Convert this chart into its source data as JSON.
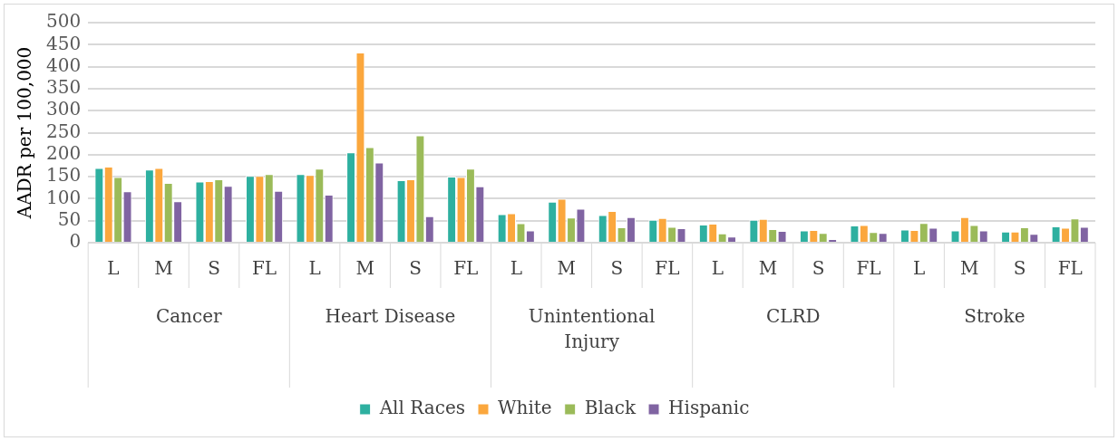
{
  "chart_data": {
    "type": "bar",
    "ylabel": "AADR per 100,000",
    "categories": [
      "L",
      "M",
      "S",
      "FL",
      "L",
      "M",
      "S",
      "FL",
      "L",
      "M",
      "S",
      "FL",
      "L",
      "M",
      "S",
      "FL",
      "L",
      "M",
      "S",
      "FL"
    ],
    "annotations": [
      "Cancer",
      "Heart Disease",
      "Unintentional Injury",
      "CLRD",
      "Stroke"
    ],
    "series": [
      {
        "name": "All Races",
        "color": "#2eb0a0",
        "values": [
          170,
          166,
          139,
          152,
          156,
          205,
          142,
          150,
          65,
          93,
          63,
          52,
          41,
          52,
          28,
          39,
          30,
          28,
          25,
          37
        ]
      },
      {
        "name": "White",
        "color": "#fba73d",
        "values": [
          173,
          170,
          140,
          152,
          154,
          432,
          144,
          149,
          67,
          100,
          72,
          56,
          43,
          54,
          29,
          40,
          29,
          58,
          25,
          34
        ]
      },
      {
        "name": "Black",
        "color": "#9bbb59",
        "values": [
          149,
          136,
          144,
          156,
          168,
          217,
          244,
          168,
          44,
          57,
          35,
          36,
          21,
          31,
          22,
          24,
          45,
          40,
          35,
          55
        ]
      },
      {
        "name": "Hispanic",
        "color": "#8064a2",
        "values": [
          117,
          94,
          129,
          118,
          109,
          182,
          60,
          128,
          28,
          77,
          58,
          33,
          14,
          27,
          8,
          22,
          34,
          28,
          20,
          36
        ]
      }
    ],
    "ylim": [
      0,
      500
    ],
    "yticks": [
      0,
      50,
      100,
      150,
      200,
      250,
      300,
      350,
      400,
      450,
      500
    ],
    "grid": "y",
    "legend": "bottom"
  }
}
